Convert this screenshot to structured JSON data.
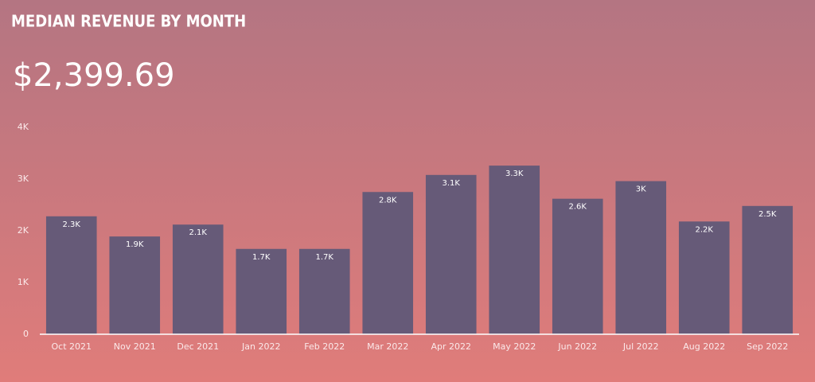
{
  "chart_data": {
    "type": "bar",
    "title": "MEDIAN REVENUE BY MONTH",
    "kpi": "$2,399.69",
    "categories": [
      "Oct 2021",
      "Nov 2021",
      "Dec 2021",
      "Jan 2022",
      "Feb 2022",
      "Mar 2022",
      "Apr 2022",
      "May 2022",
      "Jun 2022",
      "Jul 2022",
      "Aug 2022",
      "Sep 2022"
    ],
    "values": [
      2280,
      1890,
      2120,
      1650,
      1650,
      2750,
      3080,
      3260,
      2620,
      2960,
      2180,
      2480
    ],
    "value_labels": [
      "2.3K",
      "1.9K",
      "2.1K",
      "1.7K",
      "1.7K",
      "2.8K",
      "3.1K",
      "3.3K",
      "2.6K",
      "3K",
      "2.2K",
      "2.5K"
    ],
    "color": "#665a78",
    "ylim": [
      0,
      4000
    ],
    "yticks": [
      0,
      {
        "value": 1000,
        "label": "1K"
      },
      {
        "value": 2000,
        "label": "2K"
      },
      {
        "value": 3000,
        "label": "3K"
      },
      {
        "value": 4000,
        "label": "4K"
      }
    ],
    "grid": false
  }
}
